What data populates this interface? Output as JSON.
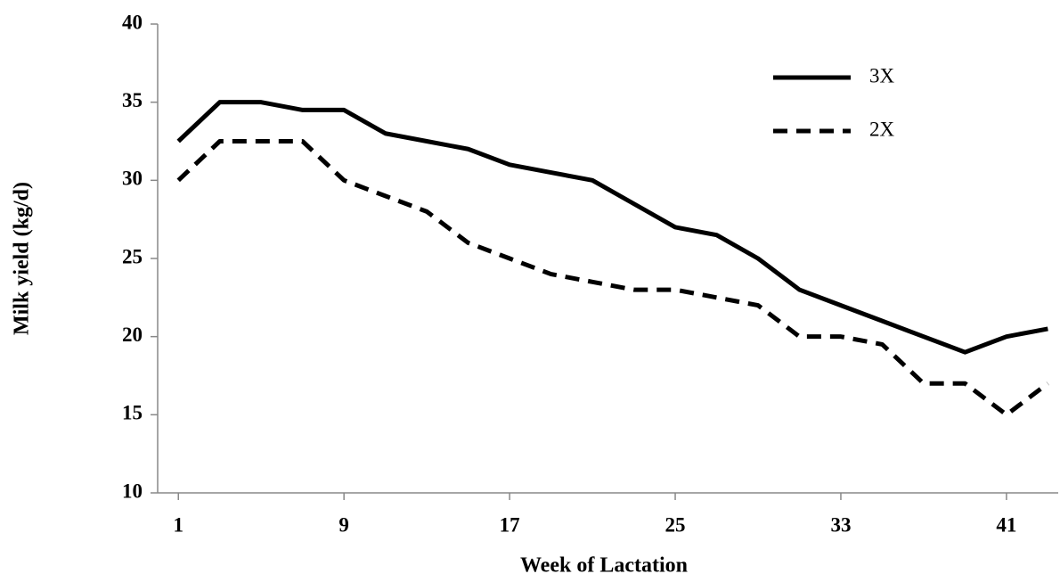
{
  "chart_data": {
    "type": "line",
    "x_label": "Week of Lactation",
    "y_label": "Milk yield (kg/d)",
    "x": [
      1,
      3,
      5,
      7,
      9,
      11,
      13,
      15,
      17,
      19,
      21,
      23,
      25,
      27,
      29,
      31,
      33,
      35,
      37,
      39,
      41,
      43
    ],
    "series": [
      {
        "name": "3X",
        "color": "#000000",
        "style": "solid",
        "values": [
          32.5,
          35,
          35,
          34.5,
          34.5,
          33,
          32.5,
          32,
          31,
          30.5,
          30,
          28.5,
          27,
          26.5,
          25,
          23,
          22,
          21,
          20,
          19,
          20,
          20.5
        ]
      },
      {
        "name": "2X",
        "color": "#000000",
        "style": "dashed",
        "values": [
          30,
          32.5,
          32.5,
          32.5,
          30,
          29,
          28,
          26,
          25,
          24,
          23.5,
          23,
          23,
          22.5,
          22,
          20,
          20,
          19.5,
          17,
          17,
          15,
          17
        ]
      }
    ],
    "xlim": [
      0,
      43.5
    ],
    "xticks": [
      1,
      9,
      17,
      25,
      33,
      41
    ],
    "ylim": [
      10,
      40
    ],
    "yticks": [
      10,
      15,
      20,
      25,
      30,
      35,
      40
    ],
    "grid": false,
    "legend": "top-right"
  }
}
